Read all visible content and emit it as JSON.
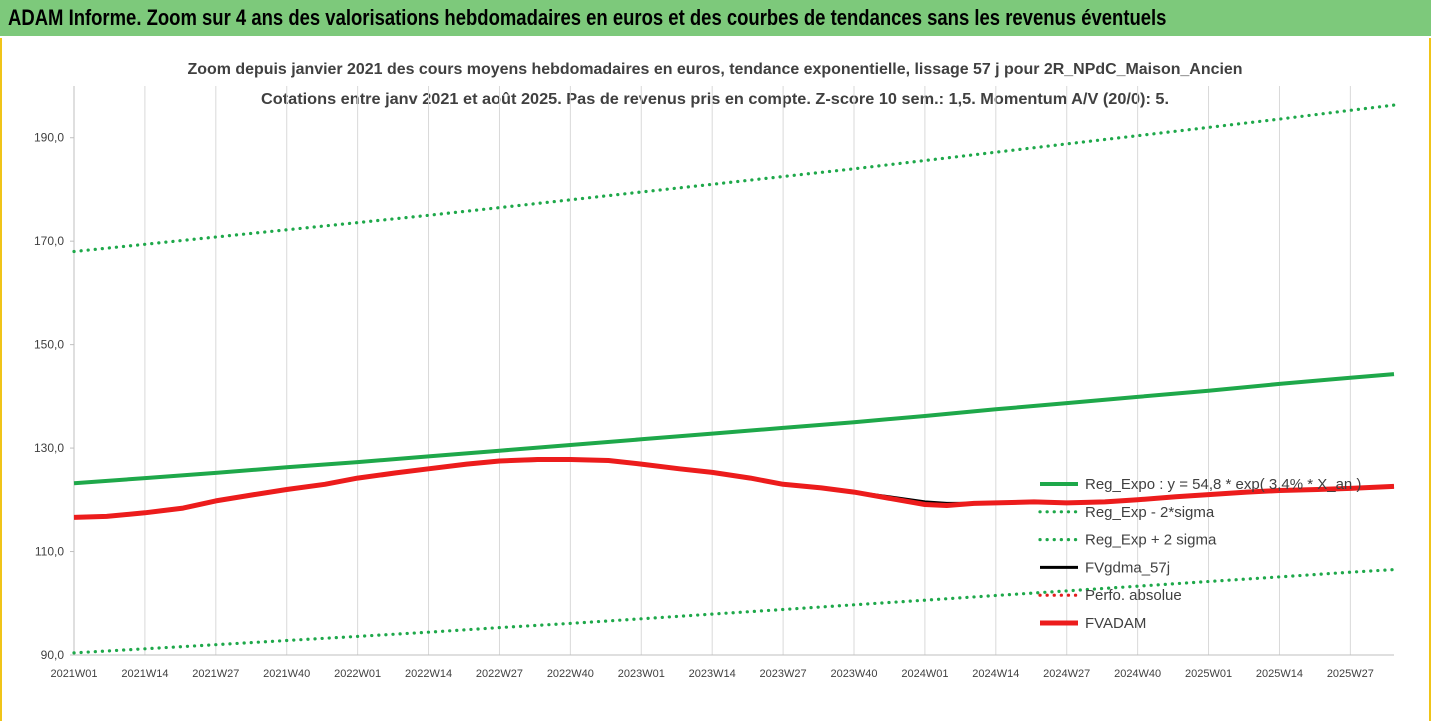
{
  "banner": {
    "title": "ADAM Informe. Zoom sur 4 ans des valorisations hebdomadaires en euros et des courbes de tendances sans les revenus éventuels"
  },
  "chart_data": {
    "type": "line",
    "title": "Zoom depuis janvier 2021 des cours moyens hebdomadaires en euros, tendance exponentielle, lissage 57 j pour 2R_NPdC_Maison_Ancien",
    "subtitle": "Cotations entre janv 2021 et août 2025.  Pas de revenus pris en compte. Z-score 10 sem.: 1,5. Momentum A/V (20/0): 5.",
    "xlabel": "",
    "ylabel": "",
    "ylim": [
      90,
      200
    ],
    "yticks": [
      "90,0",
      "110,0",
      "130,0",
      "150,0",
      "170,0",
      "190,0"
    ],
    "ytick_values": [
      90,
      110,
      130,
      150,
      170,
      190
    ],
    "x_categories": [
      "2021W01",
      "2021W14",
      "2021W27",
      "2021W40",
      "2022W01",
      "2022W14",
      "2022W27",
      "2022W40",
      "2023W01",
      "2023W14",
      "2023W27",
      "2023W40",
      "2024W01",
      "2024W14",
      "2024W27",
      "2024W40",
      "2025W01",
      "2025W14",
      "2025W27"
    ],
    "x_index_last": 242,
    "grid": "vertical",
    "legend_position": "right",
    "series": [
      {
        "name": "Reg_Expo : y = 54,8 * exp( 3,4% * X_an )",
        "color": "#1ea84a",
        "style": "solid",
        "points": [
          [
            0,
            123.2
          ],
          [
            13,
            124.2
          ],
          [
            26,
            125.2
          ],
          [
            39,
            126.3
          ],
          [
            52,
            127.3
          ],
          [
            65,
            128.4
          ],
          [
            78,
            129.5
          ],
          [
            91,
            130.6
          ],
          [
            104,
            131.7
          ],
          [
            117,
            132.8
          ],
          [
            130,
            133.9
          ],
          [
            143,
            135.0
          ],
          [
            156,
            136.2
          ],
          [
            169,
            137.5
          ],
          [
            182,
            138.7
          ],
          [
            195,
            139.9
          ],
          [
            208,
            141.1
          ],
          [
            221,
            142.4
          ],
          [
            234,
            143.6
          ],
          [
            242,
            144.3
          ]
        ]
      },
      {
        "name": "Reg_Exp - 2*sigma",
        "color": "#1ea84a",
        "style": "dotted",
        "points": [
          [
            0,
            90.4
          ],
          [
            13,
            91.2
          ],
          [
            26,
            92.0
          ],
          [
            39,
            92.8
          ],
          [
            52,
            93.6
          ],
          [
            65,
            94.4
          ],
          [
            78,
            95.3
          ],
          [
            91,
            96.1
          ],
          [
            104,
            97.0
          ],
          [
            117,
            97.9
          ],
          [
            130,
            98.8
          ],
          [
            143,
            99.7
          ],
          [
            156,
            100.6
          ],
          [
            169,
            101.5
          ],
          [
            182,
            102.4
          ],
          [
            195,
            103.3
          ],
          [
            208,
            104.2
          ],
          [
            221,
            105.1
          ],
          [
            234,
            106.0
          ],
          [
            242,
            106.5
          ]
        ]
      },
      {
        "name": "Reg_Exp + 2 sigma",
        "color": "#1ea84a",
        "style": "dotted",
        "points": [
          [
            0,
            168.0
          ],
          [
            13,
            169.4
          ],
          [
            26,
            170.8
          ],
          [
            39,
            172.2
          ],
          [
            52,
            173.6
          ],
          [
            65,
            175.0
          ],
          [
            78,
            176.5
          ],
          [
            91,
            178.0
          ],
          [
            104,
            179.5
          ],
          [
            117,
            181.0
          ],
          [
            130,
            182.5
          ],
          [
            143,
            184.0
          ],
          [
            156,
            185.6
          ],
          [
            169,
            187.2
          ],
          [
            182,
            188.8
          ],
          [
            195,
            190.4
          ],
          [
            208,
            192.0
          ],
          [
            221,
            193.6
          ],
          [
            234,
            195.3
          ],
          [
            242,
            196.3
          ]
        ]
      },
      {
        "name": "FVgdma_57j",
        "color": "#000000",
        "style": "solid",
        "points": [
          [
            0,
            116.5
          ],
          [
            6,
            116.7
          ],
          [
            13,
            117.5
          ],
          [
            20,
            118.4
          ],
          [
            26,
            119.8
          ],
          [
            33,
            121.0
          ],
          [
            39,
            122.0
          ],
          [
            46,
            123.0
          ],
          [
            52,
            124.2
          ],
          [
            59,
            125.2
          ],
          [
            65,
            126.0
          ],
          [
            72,
            126.9
          ],
          [
            78,
            127.5
          ],
          [
            85,
            127.6
          ],
          [
            91,
            127.7
          ],
          [
            98,
            127.6
          ],
          [
            104,
            126.9
          ],
          [
            111,
            126.0
          ],
          [
            117,
            125.3
          ],
          [
            124,
            124.2
          ],
          [
            130,
            123.0
          ],
          [
            137,
            122.3
          ],
          [
            143,
            121.5
          ],
          [
            150,
            120.5
          ],
          [
            156,
            119.6
          ],
          [
            160,
            119.3
          ],
          [
            165,
            119.3
          ],
          [
            169,
            119.3
          ],
          [
            176,
            119.5
          ],
          [
            182,
            119.4
          ],
          [
            189,
            119.6
          ],
          [
            195,
            120.0
          ],
          [
            202,
            120.6
          ],
          [
            208,
            121.0
          ],
          [
            215,
            121.5
          ],
          [
            221,
            121.8
          ],
          [
            228,
            122.0
          ],
          [
            234,
            122.2
          ],
          [
            242,
            122.6
          ]
        ]
      },
      {
        "name": "Perfo. absolue",
        "color": "#e41d1d",
        "style": "dotted",
        "points": []
      },
      {
        "name": "FVADAM",
        "color": "#ec1c1c",
        "style": "solid",
        "points": [
          [
            0,
            116.6
          ],
          [
            6,
            116.8
          ],
          [
            13,
            117.5
          ],
          [
            20,
            118.4
          ],
          [
            26,
            119.8
          ],
          [
            33,
            121.0
          ],
          [
            39,
            122.0
          ],
          [
            46,
            123.0
          ],
          [
            52,
            124.2
          ],
          [
            59,
            125.2
          ],
          [
            65,
            126.0
          ],
          [
            72,
            126.9
          ],
          [
            78,
            127.5
          ],
          [
            85,
            127.8
          ],
          [
            91,
            127.8
          ],
          [
            98,
            127.6
          ],
          [
            104,
            126.9
          ],
          [
            111,
            126.0
          ],
          [
            117,
            125.3
          ],
          [
            124,
            124.2
          ],
          [
            130,
            123.0
          ],
          [
            137,
            122.3
          ],
          [
            143,
            121.5
          ],
          [
            150,
            120.2
          ],
          [
            156,
            119.1
          ],
          [
            160,
            118.9
          ],
          [
            165,
            119.3
          ],
          [
            169,
            119.4
          ],
          [
            176,
            119.6
          ],
          [
            182,
            119.4
          ],
          [
            189,
            119.6
          ],
          [
            195,
            120.0
          ],
          [
            202,
            120.6
          ],
          [
            208,
            121.0
          ],
          [
            215,
            121.5
          ],
          [
            221,
            121.8
          ],
          [
            228,
            122.0
          ],
          [
            234,
            122.2
          ],
          [
            242,
            122.6
          ]
        ]
      }
    ]
  }
}
